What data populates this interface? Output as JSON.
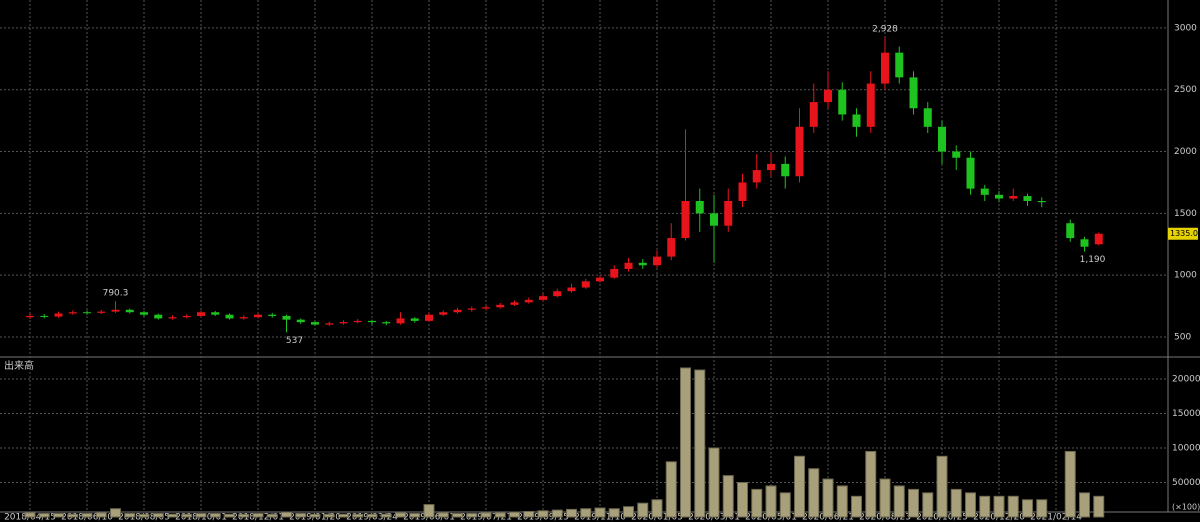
{
  "price_chart": {
    "type": "candlestick",
    "categories": [
      "2018/04/15",
      null,
      null,
      null,
      "2018/06/10",
      null,
      null,
      null,
      "2018/08/05",
      null,
      null,
      null,
      "2018/10/01",
      null,
      null,
      null,
      "2018/12/01",
      null,
      null,
      null,
      "2019/01/20",
      null,
      null,
      null,
      "2019/03/24",
      null,
      null,
      null,
      "2019/06/01",
      null,
      null,
      null,
      "2019/07/21",
      null,
      null,
      null,
      "2019/09/15",
      null,
      null,
      null,
      "2019/11/10",
      null,
      null,
      null,
      "2020/01/05",
      null,
      null,
      null,
      "2020/03/01",
      null,
      null,
      null,
      "2020/05/01",
      null,
      null,
      null,
      "2020/06/21",
      null,
      null,
      null,
      "2020/08/23",
      null,
      null,
      null,
      "2020/10/25",
      null,
      null,
      null,
      "2020/12/20",
      null,
      null,
      null,
      "2021/02/14",
      null,
      null,
      null
    ],
    "open": [
      660,
      670,
      665,
      690,
      700,
      695,
      705,
      720,
      700,
      680,
      650,
      660,
      670,
      700,
      680,
      650,
      660,
      680,
      670,
      640,
      620,
      600,
      610,
      620,
      630,
      620,
      610,
      650,
      630,
      680,
      700,
      720,
      730,
      740,
      760,
      780,
      800,
      830,
      870,
      900,
      950,
      980,
      1050,
      1100,
      1080,
      1150,
      1300,
      1600,
      1500,
      1400,
      1600,
      1750,
      1850,
      1900,
      1800,
      2200,
      2400,
      2500,
      2300,
      2200,
      2550,
      2800,
      2600,
      2350,
      2200,
      2000,
      1950,
      1700,
      1650,
      1620,
      1640,
      1600,
      null,
      1420,
      1290,
      1250
    ],
    "high": [
      690,
      685,
      705,
      715,
      715,
      720,
      790.3,
      730,
      710,
      690,
      675,
      685,
      715,
      710,
      690,
      675,
      695,
      695,
      680,
      650,
      630,
      625,
      635,
      645,
      640,
      630,
      700,
      660,
      700,
      715,
      735,
      745,
      760,
      775,
      795,
      820,
      850,
      890,
      930,
      970,
      1000,
      1080,
      1140,
      1130,
      1200,
      1420,
      2180,
      1700,
      1650,
      1700,
      1820,
      1980,
      1990,
      1960,
      2350,
      2550,
      2650,
      2560,
      2350,
      2650,
      2928,
      2850,
      2650,
      2400,
      2250,
      2050,
      2000,
      1730,
      1680,
      1700,
      1660,
      1630,
      null,
      1450,
      1310,
      1345
    ],
    "low": [
      645,
      650,
      655,
      680,
      680,
      685,
      695,
      690,
      665,
      640,
      640,
      650,
      660,
      670,
      640,
      640,
      650,
      655,
      537,
      605,
      590,
      590,
      600,
      610,
      605,
      595,
      600,
      615,
      620,
      670,
      690,
      705,
      715,
      730,
      750,
      770,
      790,
      820,
      860,
      890,
      940,
      970,
      1030,
      1050,
      1060,
      1120,
      1280,
      1350,
      1100,
      1350,
      1550,
      1700,
      1800,
      1700,
      1750,
      2150,
      2350,
      2250,
      2120,
      2150,
      2500,
      2550,
      2300,
      2150,
      1900,
      1850,
      1650,
      1600,
      1590,
      1600,
      1560,
      1550,
      null,
      1270,
      1190,
      1240
    ],
    "close": [
      670,
      665,
      690,
      700,
      695,
      705,
      720,
      700,
      680,
      650,
      660,
      670,
      700,
      680,
      650,
      660,
      680,
      670,
      640,
      620,
      600,
      610,
      620,
      630,
      620,
      610,
      650,
      630,
      680,
      700,
      720,
      730,
      740,
      760,
      780,
      800,
      830,
      870,
      900,
      950,
      980,
      1050,
      1100,
      1080,
      1150,
      1300,
      1600,
      1500,
      1400,
      1600,
      1750,
      1850,
      1900,
      1800,
      2200,
      2400,
      2500,
      2300,
      2200,
      2550,
      2800,
      2600,
      2350,
      2200,
      2000,
      1950,
      1700,
      1650,
      1620,
      1640,
      1600,
      1590,
      null,
      1300,
      1230,
      1335
    ],
    "up_color": "#e8141b",
    "down_color": "#1fc31f",
    "ylim": [
      354,
      3226
    ],
    "yticks": [
      500,
      1000,
      1500,
      2000,
      2500,
      3000
    ],
    "grid": true,
    "annotations": [
      {
        "label": "790.3",
        "value": 790.3
      },
      {
        "label": "537",
        "value": 537
      },
      {
        "label": "2,928",
        "value": 2928
      },
      {
        "label": "1,190",
        "value": 1190
      }
    ],
    "last_price": {
      "value": 1335,
      "label": "1335.0"
    }
  },
  "volume_chart": {
    "type": "bar",
    "title": "出来高",
    "unit_label": "(×100)",
    "color": "#a8a07a",
    "values": [
      6000,
      5000,
      5000,
      4000,
      5000,
      6000,
      12000,
      5000,
      4000,
      5000,
      4000,
      4000,
      5000,
      5000,
      4000,
      4000,
      5000,
      4000,
      7000,
      5000,
      4000,
      4000,
      4000,
      4000,
      4000,
      4000,
      6000,
      5000,
      18000,
      6000,
      5000,
      5000,
      6000,
      6000,
      7000,
      8000,
      9000,
      10000,
      11000,
      12000,
      13000,
      12000,
      15000,
      20000,
      25000,
      80000,
      216000,
      213000,
      100000,
      60000,
      50000,
      40000,
      45000,
      35000,
      88000,
      70000,
      55000,
      45000,
      30000,
      95000,
      55000,
      45000,
      40000,
      35000,
      88000,
      40000,
      35000,
      30000,
      30000,
      30000,
      25000,
      25000,
      null,
      95000,
      35000,
      30000
    ],
    "ylim": [
      0,
      227500
    ],
    "yticks": [
      50000,
      100000,
      150000,
      200000
    ],
    "grid": true
  }
}
